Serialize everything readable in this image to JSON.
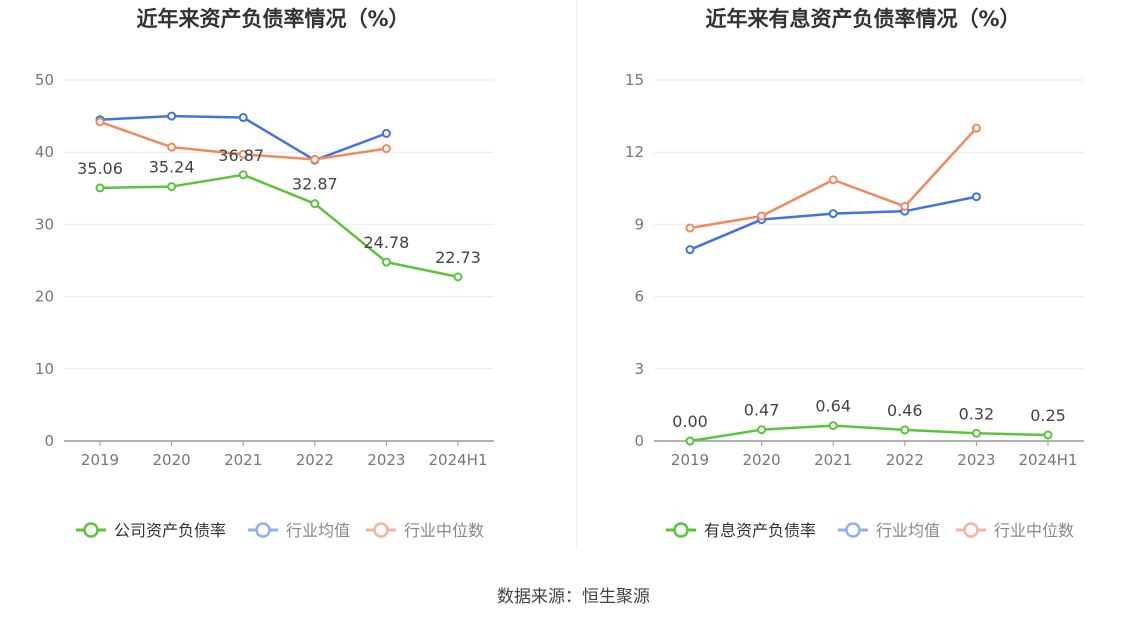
{
  "source": "数据来源：恒生聚源",
  "colors": {
    "green": "#5ac53b",
    "blue": "#4174e0",
    "orange": "#f08a5d",
    "legend_blue": "#8fb0ef",
    "legend_orange": "#f6b59b",
    "grid": "#e6e9f2",
    "axis": "#999999",
    "tick": "#777777",
    "title": "#333333"
  },
  "chart_data": [
    {
      "type": "line",
      "title": "近年来资产负债率情况（%）",
      "categories": [
        "2019",
        "2020",
        "2021",
        "2022",
        "2023",
        "2024H1"
      ],
      "ylim": [
        0,
        50
      ],
      "yticks": [
        0,
        10,
        20,
        30,
        40,
        50
      ],
      "grid": true,
      "legend_position": "bottom",
      "series": [
        {
          "name": "公司资产负债率",
          "color": "#5ac53b",
          "legend_color": "#5ac53b",
          "values": [
            35.06,
            35.24,
            36.87,
            32.87,
            24.78,
            22.73
          ],
          "labels": [
            "35.06",
            "35.24",
            "36.87",
            "32.87",
            "24.78",
            "22.73"
          ]
        },
        {
          "name": "行业均值",
          "color": "#4174e0",
          "legend_color": "#8fb0ef",
          "values": [
            44.5,
            45.0,
            44.8,
            38.9,
            42.6,
            null
          ]
        },
        {
          "name": "行业中位数",
          "color": "#f08a5d",
          "legend_color": "#f6b59b",
          "values": [
            44.2,
            40.7,
            39.7,
            39.0,
            40.5,
            null
          ]
        }
      ]
    },
    {
      "type": "line",
      "title": "近年来有息资产负债率情况（%）",
      "categories": [
        "2019",
        "2020",
        "2021",
        "2022",
        "2023",
        "2024H1"
      ],
      "ylim": [
        0,
        15
      ],
      "yticks": [
        0,
        3,
        6,
        9,
        12,
        15
      ],
      "grid": true,
      "legend_position": "bottom",
      "series": [
        {
          "name": "有息资产负债率",
          "color": "#5ac53b",
          "legend_color": "#5ac53b",
          "values": [
            0.0,
            0.47,
            0.64,
            0.46,
            0.32,
            0.25
          ],
          "labels": [
            "0.00",
            "0.47",
            "0.64",
            "0.46",
            "0.32",
            "0.25"
          ]
        },
        {
          "name": "行业均值",
          "color": "#4174e0",
          "legend_color": "#8fb0ef",
          "values": [
            7.95,
            9.2,
            9.45,
            9.55,
            10.15,
            null
          ]
        },
        {
          "name": "行业中位数",
          "color": "#f08a5d",
          "legend_color": "#f6b59b",
          "values": [
            8.85,
            9.35,
            10.85,
            9.75,
            13.0,
            null
          ]
        }
      ]
    }
  ]
}
